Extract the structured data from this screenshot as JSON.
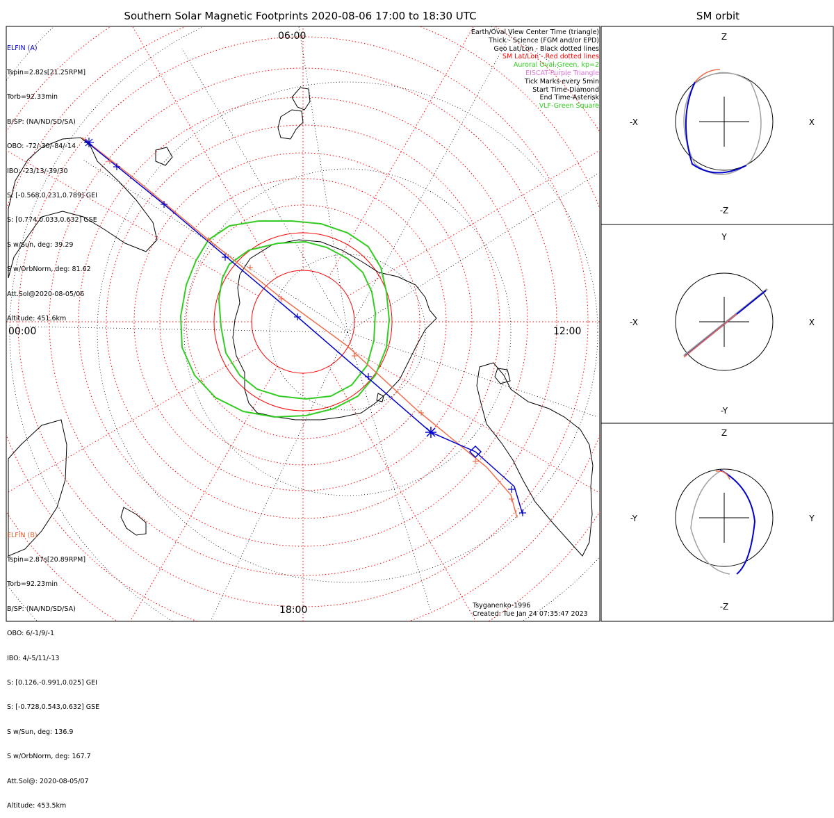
{
  "title": "Southern Solar Magnetic Footprints 2020-08-06 17:00 to 18:30 UTC",
  "orbit_title": "SM orbit",
  "hour_labels": {
    "top": "06:00",
    "left": "00:00",
    "right": "12:00",
    "bottom": "18:00"
  },
  "elfin_a": {
    "lines": [
      "ELFIN (A)",
      "Tspin=2.82s[21.25RPM]",
      "Torb=92.33min",
      "B/SP: (NA/ND/SD/SA)",
      "OBO: -72/-30/-84/-14",
      "IBO: -23/13/-39/30",
      "S: [-0.568,0.231,0.789] GEI",
      "S: [0.774,0.033,0.632] GSE",
      "S w/Sun, deg: 39.29",
      "S w/OrbNorm, deg: 81.62",
      "Att.Sol@2020-08-05/06",
      "Altitude: 451.6km"
    ],
    "color": "#0000cc"
  },
  "elfin_b": {
    "lines": [
      "ELFIN (B)",
      "Tspin=2.87s[20.89RPM]",
      "Torb=92.23min",
      "B/SP: (NA/ND/SD/SA)",
      "OBO: 6/-1/9/-1",
      "IBO: 4/-5/11/-13",
      "S: [0.126,-0.991,0.025] GEI",
      "S: [-0.728,0.543,0.632] GSE",
      "S w/Sun, deg: 136.9",
      "S w/OrbNorm, deg: 167.7",
      "Att.Sol@: 2020-08-05/07",
      "Altitude: 453.5km"
    ],
    "color": "#e06030"
  },
  "legend": [
    {
      "text": "Earth/Oval View Center Time (triangle)",
      "color": "#000000"
    },
    {
      "text": "Thick - Science (FGM and/or EPD)",
      "color": "#000000"
    },
    {
      "text": "Geo Lat/Lon - Black dotted lines",
      "color": "#000000"
    },
    {
      "text": "SM Lat/Lon - Red dotted lines",
      "color": "#ff0000"
    },
    {
      "text": "Auroral Oval-Green, kp=2",
      "color": "#22bb22"
    },
    {
      "text": "EISCAT-Purple Triangle",
      "color": "#cc66cc"
    },
    {
      "text": "Tick Marks every 5min",
      "color": "#000000"
    },
    {
      "text": "Start Time-Diamond",
      "color": "#000000"
    },
    {
      "text": "End Time-Asterisk",
      "color": "#000000"
    },
    {
      "text": "VLF-Green Square",
      "color": "#22bb22"
    }
  ],
  "footer": {
    "model": "Tsyganenko-1996",
    "created": "Created: Tue Jan 24 07:35:47 2023"
  },
  "orbit_panels": [
    {
      "up": "Z",
      "down": "-Z",
      "left": "-X",
      "right": "X"
    },
    {
      "up": "Y",
      "down": "-Y",
      "left": "-X",
      "right": "X"
    },
    {
      "up": "Z",
      "down": "-Z",
      "left": "-Y",
      "right": "Y"
    }
  ],
  "colors": {
    "elfin_a": "#0000cc",
    "elfin_b": "#ee7050",
    "sm_grid": "#ff0000",
    "geo_grid": "#000000",
    "auroral_oval": "#33cc22",
    "orbit_gray": "#a0a0a0"
  },
  "chart_data": {
    "type": "scatter",
    "title": "Southern Solar Magnetic Footprints 2020-08-06 17:00 to 18:30 UTC",
    "projection": "south polar, magnetic local time",
    "mlt_labels": [
      "00:00",
      "06:00",
      "12:00",
      "18:00"
    ],
    "series": [
      {
        "name": "ELFIN (A)",
        "color": "#0000cc"
      },
      {
        "name": "ELFIN (B)",
        "color": "#ee7050"
      }
    ],
    "oval_kp": 2,
    "tick_interval_min": 5
  }
}
